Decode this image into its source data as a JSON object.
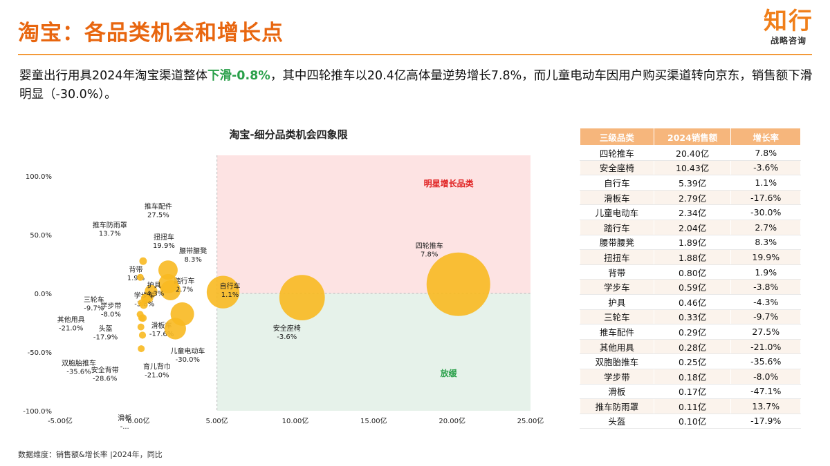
{
  "header": {
    "title": "淘宝：各品类机会和增长点",
    "logo_main": "知行",
    "logo_sub": "战略咨询"
  },
  "summary": {
    "part1": "婴童出行用具2024年淘宝渠道整体",
    "highlight": "下滑-0.8%",
    "part2": "，其中四轮推车以20.4亿高体量逆势增长7.8%，而儿童电动车因用户购买渠道转向京东，销售额下滑明显（-30.0%）。"
  },
  "chart_data": {
    "type": "bubble",
    "title": "淘宝-细分品类机会四象限",
    "xlim": [
      -5,
      25
    ],
    "ylim": [
      -100,
      100
    ],
    "x_ticks": [
      "-5.00亿",
      "0.00亿",
      "5.00亿",
      "10.00亿",
      "15.00亿",
      "20.00亿",
      "25.00亿"
    ],
    "y_ticks": [
      "100.0%",
      "50.0%",
      "0.0%",
      "-50.0%",
      "-100.0%"
    ],
    "quadrant_labels": {
      "star": "明星增长品类",
      "slow": "放缓"
    },
    "colors": {
      "star_bg": "#fde3e3",
      "slow_bg": "#e6f2ea",
      "bubble": "#f8b921",
      "star_text": "#e02020",
      "slow_text": "#2aa04a"
    },
    "points": [
      {
        "name": "四轮推车",
        "label": "7.8%",
        "x": 20.4,
        "y": 7.8
      },
      {
        "name": "安全座椅",
        "label": "-3.6%",
        "x": 10.43,
        "y": -3.6
      },
      {
        "name": "自行车",
        "label": "1.1%",
        "x": 5.39,
        "y": 1.1
      },
      {
        "name": "滑板车",
        "label": "-17.6%",
        "x": 2.79,
        "y": -17.6
      },
      {
        "name": "儿童电动车",
        "label": "-30.0%",
        "x": 2.34,
        "y": -30.0
      },
      {
        "name": "踏行车",
        "label": "2.7%",
        "x": 2.04,
        "y": 2.7
      },
      {
        "name": "腰带腰凳",
        "label": "8.3%",
        "x": 1.89,
        "y": 8.3
      },
      {
        "name": "扭扭车",
        "label": "19.9%",
        "x": 1.88,
        "y": 19.9
      },
      {
        "name": "背带",
        "label": "1.9%",
        "x": 0.8,
        "y": 1.9
      },
      {
        "name": "学步车",
        "label": "-3.8%",
        "x": 0.59,
        "y": -3.8
      },
      {
        "name": "护具",
        "label": "-4.3%",
        "x": 0.46,
        "y": -4.3
      },
      {
        "name": "三轮车",
        "label": "-9.7%",
        "x": 0.33,
        "y": -9.7
      },
      {
        "name": "推车配件",
        "label": "27.5%",
        "x": 0.29,
        "y": 27.5
      },
      {
        "name": "其他用具",
        "label": "-21.0%",
        "x": 0.28,
        "y": -21.0
      },
      {
        "name": "双胞胎推车",
        "label": "-35.6%",
        "x": 0.25,
        "y": -35.6
      },
      {
        "name": "学步带",
        "label": "-8.0%",
        "x": 0.18,
        "y": -8.0
      },
      {
        "name": "滑板",
        "label": "-...",
        "x": 0.17,
        "y": -47.1
      },
      {
        "name": "推车防雨罩",
        "label": "13.7%",
        "x": 0.11,
        "y": 13.7
      },
      {
        "name": "头盔",
        "label": "-17.9%",
        "x": 0.1,
        "y": -17.9
      },
      {
        "name": "育儿背巾",
        "label": "-21.0%",
        "x": 0.2,
        "y": -21.0
      },
      {
        "name": "安全背带",
        "label": "-28.6%",
        "x": 0.15,
        "y": -28.6
      }
    ]
  },
  "table": {
    "headers": [
      "三级品类",
      "2024销售额",
      "增长率"
    ],
    "rows": [
      [
        "四轮推车",
        "20.40亿",
        "7.8%"
      ],
      [
        "安全座椅",
        "10.43亿",
        "-3.6%"
      ],
      [
        "自行车",
        "5.39亿",
        "1.1%"
      ],
      [
        "滑板车",
        "2.79亿",
        "-17.6%"
      ],
      [
        "儿童电动车",
        "2.34亿",
        "-30.0%"
      ],
      [
        "踏行车",
        "2.04亿",
        "2.7%"
      ],
      [
        "腰带腰凳",
        "1.89亿",
        "8.3%"
      ],
      [
        "扭扭车",
        "1.88亿",
        "19.9%"
      ],
      [
        "背带",
        "0.80亿",
        "1.9%"
      ],
      [
        "学步车",
        "0.59亿",
        "-3.8%"
      ],
      [
        "护具",
        "0.46亿",
        "-4.3%"
      ],
      [
        "三轮车",
        "0.33亿",
        "-9.7%"
      ],
      [
        "推车配件",
        "0.29亿",
        "27.5%"
      ],
      [
        "其他用具",
        "0.28亿",
        "-21.0%"
      ],
      [
        "双胞胎推车",
        "0.25亿",
        "-35.6%"
      ],
      [
        "学步带",
        "0.18亿",
        "-8.0%"
      ],
      [
        "滑板",
        "0.17亿",
        "-47.1%"
      ],
      [
        "推车防雨罩",
        "0.11亿",
        "13.7%"
      ],
      [
        "头盔",
        "0.10亿",
        "-17.9%"
      ]
    ]
  },
  "footnote": "数据维度：销售额&增长率 |2024年，同比"
}
